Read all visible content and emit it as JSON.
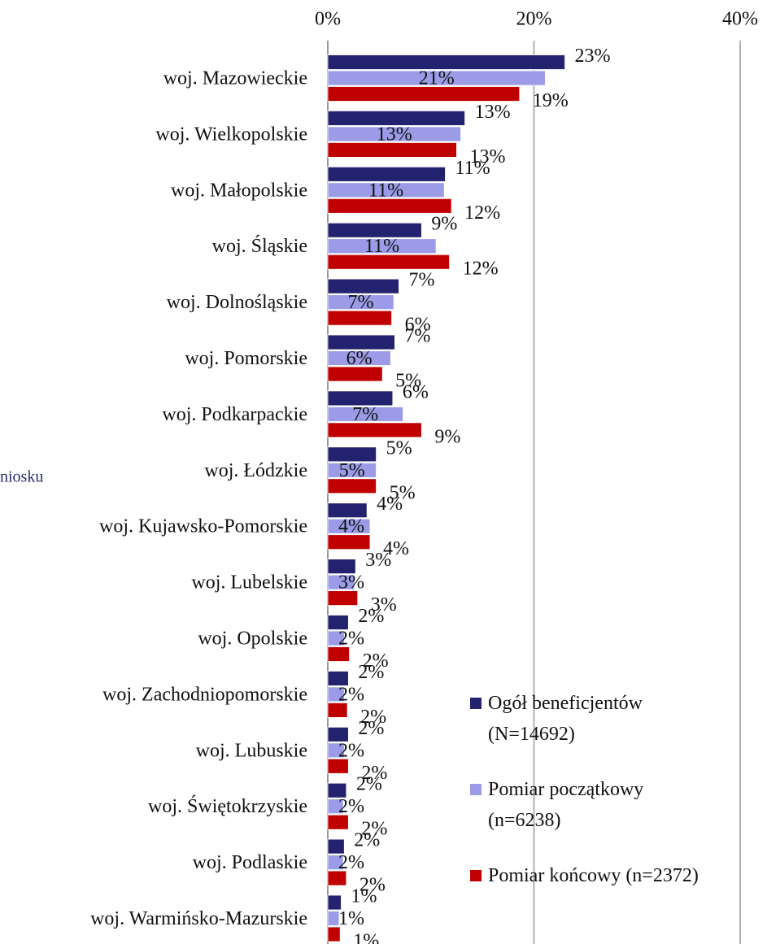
{
  "chart_data": {
    "type": "bar",
    "orientation": "horizontal",
    "annotation": "niosku",
    "categories": [
      "woj. Mazowieckie",
      "woj. Wielkopolskie",
      "woj. Małopolskie",
      "woj. Śląskie",
      "woj. Dolnośląskie",
      "woj. Pomorskie",
      "woj. Podkarpackie",
      "woj. Łódzkie",
      "woj. Kujawsko-Pomorskie",
      "woj. Lubelskie",
      "woj. Opolskie",
      "woj. Zachodniopomorskie",
      "woj. Lubuskie",
      "woj. Świętokrzyskie",
      "woj. Podlaskie",
      "woj. Warmińsko-Mazurskie"
    ],
    "series": [
      {
        "name": "Ogół beneficjentów (N=14692)",
        "color": "#22226e",
        "values": [
          23.0,
          13.3,
          11.4,
          9.1,
          6.9,
          6.5,
          6.3,
          4.7,
          3.8,
          2.7,
          2.0,
          2.0,
          2.0,
          1.8,
          1.6,
          1.3
        ],
        "value_labels": [
          "23%",
          "13%",
          "11%",
          "9%",
          "7%",
          "7%",
          "6%",
          "5%",
          "4%",
          "3%",
          "2%",
          "2%",
          "2%",
          "2%",
          "2%",
          "1%"
        ]
      },
      {
        "name": "Pomiar początkowy (n=6238)",
        "color": "#9b9be8",
        "values": [
          21.1,
          12.9,
          11.3,
          10.5,
          6.4,
          6.1,
          7.3,
          4.7,
          4.1,
          2.6,
          1.6,
          1.6,
          1.6,
          1.5,
          1.5,
          1.1
        ],
        "value_labels": [
          "21%",
          "13%",
          "11%",
          "11%",
          "7%",
          "6%",
          "7%",
          "5%",
          "4%",
          "3%",
          "2%",
          "2%",
          "2%",
          "2%",
          "2%",
          "1%"
        ]
      },
      {
        "name": "Pomiar końcowy (n=2372)",
        "color": "#c00000",
        "values": [
          18.6,
          12.5,
          12.0,
          11.8,
          6.2,
          5.3,
          9.1,
          4.7,
          4.1,
          2.9,
          2.1,
          1.9,
          2.0,
          2.0,
          1.8,
          1.2
        ],
        "value_labels": [
          "19%",
          "13%",
          "12%",
          "12%",
          "6%",
          "5%",
          "9%",
          "5%",
          "4%",
          "3%",
          "2%",
          "2%",
          "2%",
          "2%",
          "2%",
          "1%"
        ]
      }
    ],
    "xlim": [
      0,
      40
    ],
    "xticks": [
      {
        "value": 0,
        "label": "0%"
      },
      {
        "value": 20,
        "label": "20%"
      },
      {
        "value": 40,
        "label": "40%"
      }
    ],
    "grid": true,
    "legend": "right"
  }
}
